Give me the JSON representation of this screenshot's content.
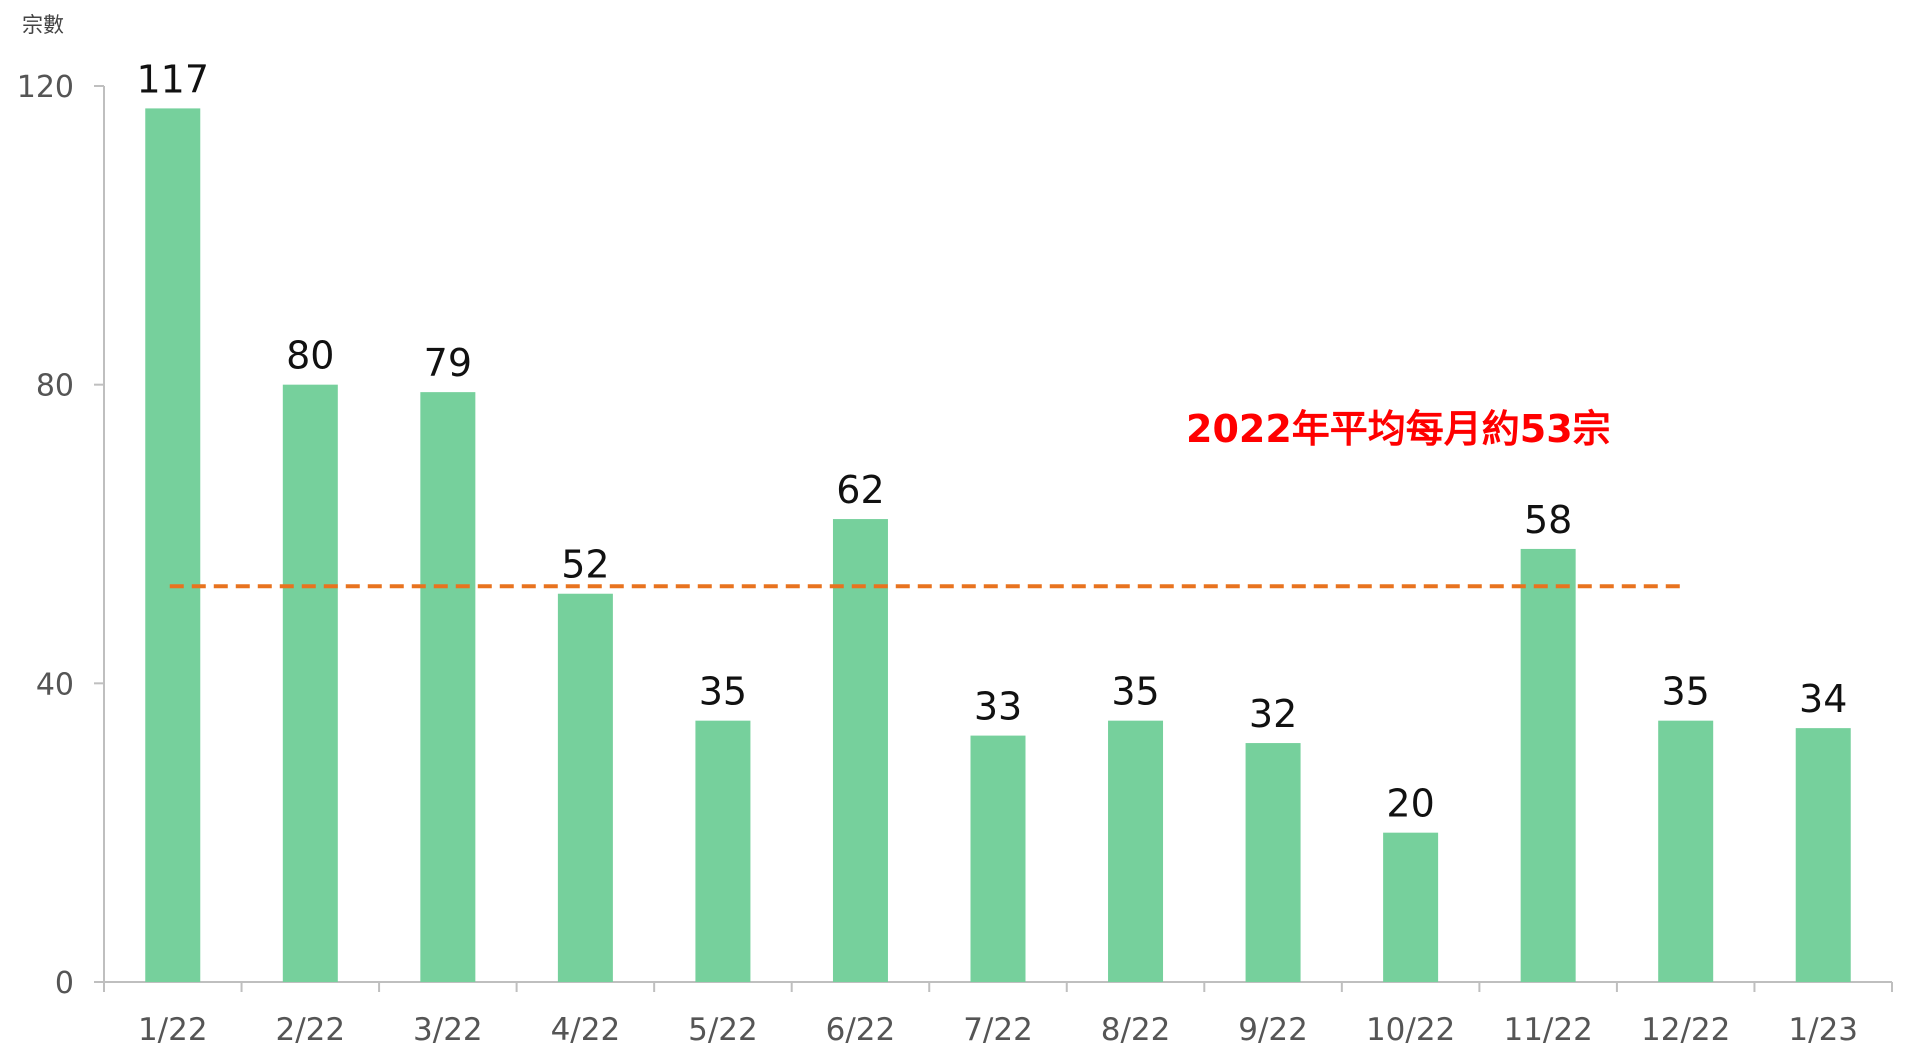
{
  "chart_data": {
    "type": "bar",
    "ylabel": "宗數",
    "ylim": [
      0,
      120
    ],
    "yticks": [
      0,
      40,
      80,
      120
    ],
    "grid": false,
    "categories": [
      "1/22",
      "2/22",
      "3/22",
      "4/22",
      "5/22",
      "6/22",
      "7/22",
      "8/22",
      "9/22",
      "10/22",
      "11/22",
      "12/22",
      "1/23"
    ],
    "series": [
      {
        "values": [
          117,
          80,
          79,
          52,
          35,
          62,
          33,
          35,
          32,
          20,
          58,
          35,
          34
        ]
      }
    ],
    "data_labels": [
      "117",
      "80",
      "79",
      "52",
      "35",
      "62",
      "33",
      "35",
      "32",
      "20",
      "58",
      "35",
      "34"
    ],
    "reference_line": {
      "value": 53,
      "style": "dashed",
      "span_categories": [
        "1/22",
        "12/22"
      ],
      "label": "2022年平均每月約53宗"
    },
    "colors": {
      "bar": "#76d09c",
      "reference_line": "#e8731f",
      "reference_label": "#ff0000"
    }
  }
}
